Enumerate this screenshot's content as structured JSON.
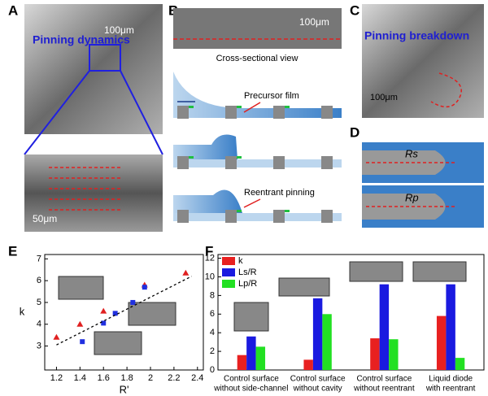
{
  "panels": {
    "a": {
      "label": "A",
      "title": "Pinning dynamics",
      "scale_top": "100μm",
      "scale_bottom": "50μm"
    },
    "b": {
      "label": "B",
      "scale": "100μm",
      "caption": "Cross-sectional view",
      "note1": "Precursor film",
      "note2": "Reentrant pinning"
    },
    "c": {
      "label": "C",
      "title": "Pinning breakdown",
      "scale": "100μm"
    },
    "d": {
      "label": "D",
      "rs": "Rs",
      "rp": "Rp"
    },
    "e": {
      "label": "E"
    },
    "f": {
      "label": "F"
    }
  },
  "chart_data": [
    {
      "type": "scatter",
      "xlabel": "R'",
      "ylabel": "k",
      "xlim": [
        1.1,
        2.45
      ],
      "ylim": [
        1.9,
        7.2
      ],
      "xticks": [
        1.2,
        1.4,
        1.6,
        1.8,
        2.0,
        2.2,
        2.4
      ],
      "yticks": [
        3,
        4,
        5,
        6,
        7
      ],
      "series": [
        {
          "color": "#e02020",
          "marker": "triangle",
          "x": [
            1.2,
            1.4,
            1.6,
            1.95,
            2.3
          ],
          "values": [
            3.4,
            4.0,
            4.6,
            5.8,
            6.35
          ]
        },
        {
          "color": "#2030e0",
          "marker": "square",
          "x": [
            1.42,
            1.6,
            1.7,
            1.85,
            1.95
          ],
          "values": [
            3.2,
            4.05,
            4.5,
            5.0,
            5.7
          ]
        },
        {
          "color": "#000000",
          "marker": "dashed-line",
          "x": [
            1.2,
            2.35
          ],
          "values": [
            3.05,
            6.2
          ]
        }
      ]
    },
    {
      "type": "bar",
      "categories": [
        [
          "Control surface",
          "without side-channel"
        ],
        [
          "Control surface",
          "without cavity"
        ],
        [
          "Control surface",
          "without reentrant"
        ],
        [
          "Liquid diode",
          "with reentrant"
        ]
      ],
      "ylim": [
        0,
        12.4
      ],
      "yticks": [
        0,
        2,
        4,
        6,
        8,
        10,
        12
      ],
      "legend": "top-left",
      "series": [
        {
          "name": "k",
          "color": "#e82020",
          "values": [
            1.6,
            1.1,
            3.4,
            5.8
          ]
        },
        {
          "name": "Ls/R",
          "color": "#1a1ae0",
          "values": [
            3.6,
            7.7,
            9.2,
            9.2
          ]
        },
        {
          "name": "Lp/R",
          "color": "#22e022",
          "values": [
            2.5,
            6.0,
            3.3,
            1.3
          ]
        }
      ]
    }
  ]
}
